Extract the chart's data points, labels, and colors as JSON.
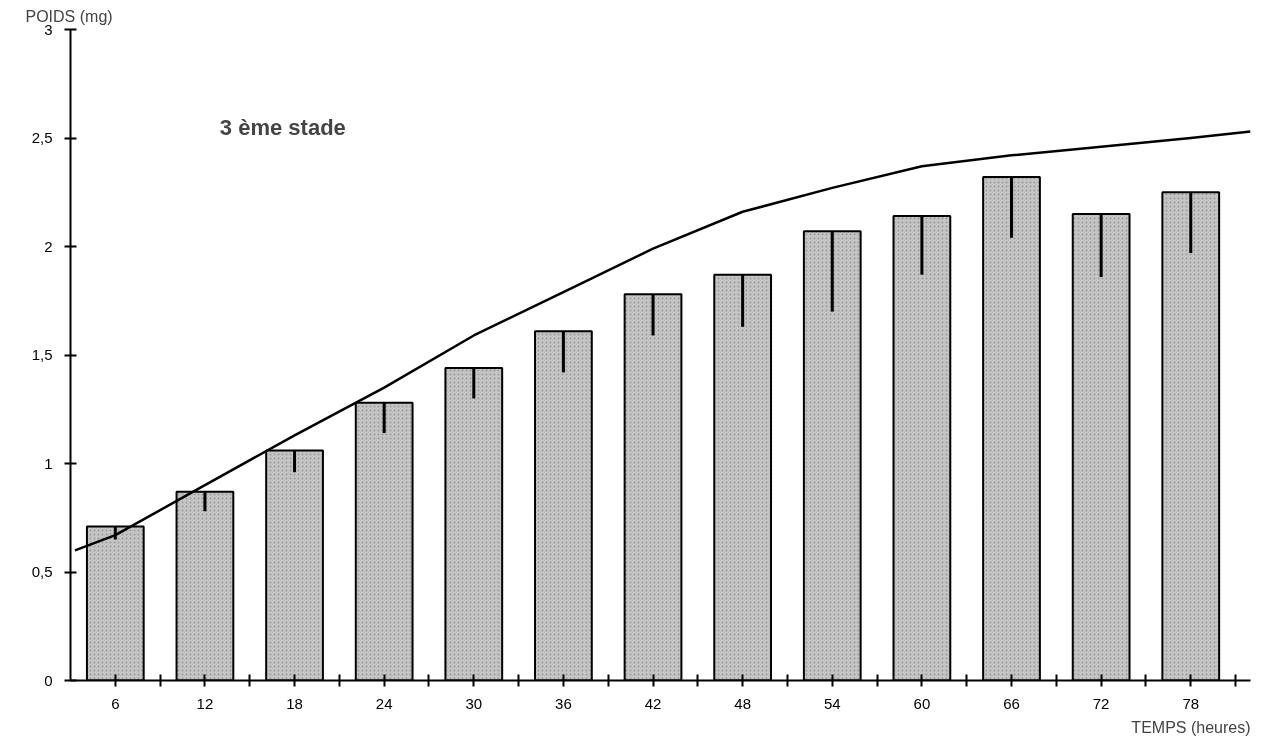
{
  "chart_data": {
    "type": "bar",
    "xlabel": "TEMPS (heures)",
    "ylabel": "POIDS (mg)",
    "annotations": [
      "3 ème   stade"
    ],
    "x": [
      6,
      12,
      18,
      24,
      30,
      36,
      42,
      48,
      54,
      60,
      66,
      72,
      78
    ],
    "xlim": [
      3,
      82
    ],
    "xticks": [
      6,
      {
        "value": 9,
        "label": null
      },
      12,
      {
        "value": 15,
        "label": null
      },
      18,
      {
        "value": 21,
        "label": null
      },
      24,
      {
        "value": 27,
        "label": null
      },
      30,
      {
        "value": 33,
        "label": null
      },
      36,
      {
        "value": 39,
        "label": null
      },
      42,
      {
        "value": 45,
        "label": null
      },
      48,
      {
        "value": 51,
        "label": null
      },
      54,
      {
        "value": 57,
        "label": null
      },
      60,
      {
        "value": 63,
        "label": null
      },
      66,
      {
        "value": 69,
        "label": null
      },
      72,
      {
        "value": 75,
        "label": null
      },
      78,
      {
        "value": 81,
        "label": null
      }
    ],
    "ylim": [
      0,
      3
    ],
    "yticks": [
      0,
      {
        "value": 0.5,
        "label": "0,5"
      },
      1,
      {
        "value": 1.5,
        "label": "1,5"
      },
      2,
      {
        "value": 2.5,
        "label": "2,5"
      },
      3
    ],
    "grid": false,
    "series": [
      {
        "color": "#c4c4c4",
        "values": [
          0.71,
          0.87,
          1.06,
          1.28,
          1.44,
          1.61,
          1.78,
          1.87,
          2.07,
          2.14,
          2.32,
          2.15,
          2.25
        ],
        "errors": [
          [
            0.65,
            0.71
          ],
          [
            0.78,
            0.87
          ],
          [
            0.96,
            1.06
          ],
          [
            1.14,
            1.28
          ],
          [
            1.3,
            1.44
          ],
          [
            1.42,
            1.61
          ],
          [
            1.59,
            1.78
          ],
          [
            1.63,
            1.87
          ],
          [
            1.7,
            2.07
          ],
          [
            1.87,
            2.14
          ],
          [
            2.04,
            2.32
          ],
          [
            1.86,
            2.15
          ],
          [
            1.97,
            2.25
          ]
        ]
      },
      {
        "type": "line",
        "color": "#000000",
        "x": [
          3.3,
          6,
          12,
          18,
          24,
          30,
          36,
          42,
          48,
          54,
          60,
          66,
          72,
          78,
          82
        ],
        "values": [
          0.6,
          0.67,
          0.9,
          1.13,
          1.35,
          1.59,
          1.79,
          1.99,
          2.16,
          2.27,
          2.37,
          2.42,
          2.46,
          2.5,
          2.53
        ]
      }
    ]
  }
}
